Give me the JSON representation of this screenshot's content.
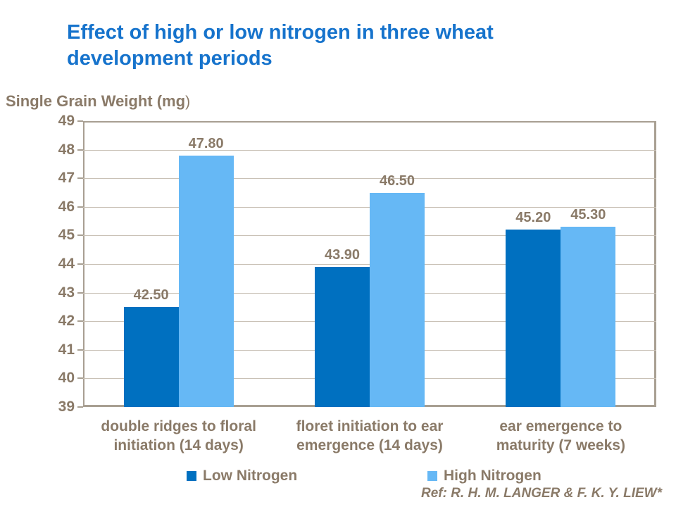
{
  "title": {
    "lines": [
      "Effect of high or low nitrogen in three wheat",
      "development periods"
    ]
  },
  "y_axis_title": {
    "main": "Single Grain Weight (mg",
    "suffix": ")"
  },
  "legend": [
    {
      "label": "Low Nitrogen",
      "color": "#0070C0"
    },
    {
      "label": "High Nitrogen",
      "color": "#66B8F5"
    }
  ],
  "reference": "Ref: R. H. M. LANGER & F. K. Y. LIEW*",
  "colors": {
    "title_blue": "#1673CC",
    "text_taupe": "#8A7A68",
    "gridline": "#C9C1B6",
    "axis": "#A89F92",
    "low_nitrogen": "#0070C0",
    "high_nitrogen": "#66B8F5",
    "background": "#FFFFFF"
  },
  "chart_data": {
    "type": "bar",
    "title": "Effect of high or low nitrogen in three wheat development periods",
    "ylabel": "Single Grain Weight (mg)",
    "categories": [
      "double ridges to floral initiation (14 days)",
      "floret initiation to ear emergence (14 days)",
      "ear emergence to maturity (7 weeks)"
    ],
    "series": [
      {
        "name": "Low Nitrogen",
        "color": "#0070C0",
        "values": [
          42.5,
          43.9,
          45.2
        ]
      },
      {
        "name": "High Nitrogen",
        "color": "#66B8F5",
        "values": [
          47.8,
          46.5,
          45.3
        ]
      }
    ],
    "ylim": [
      39,
      49
    ],
    "ytick_step": 1,
    "grid": true,
    "legend_position": "bottom",
    "value_label_decimals": 2
  }
}
